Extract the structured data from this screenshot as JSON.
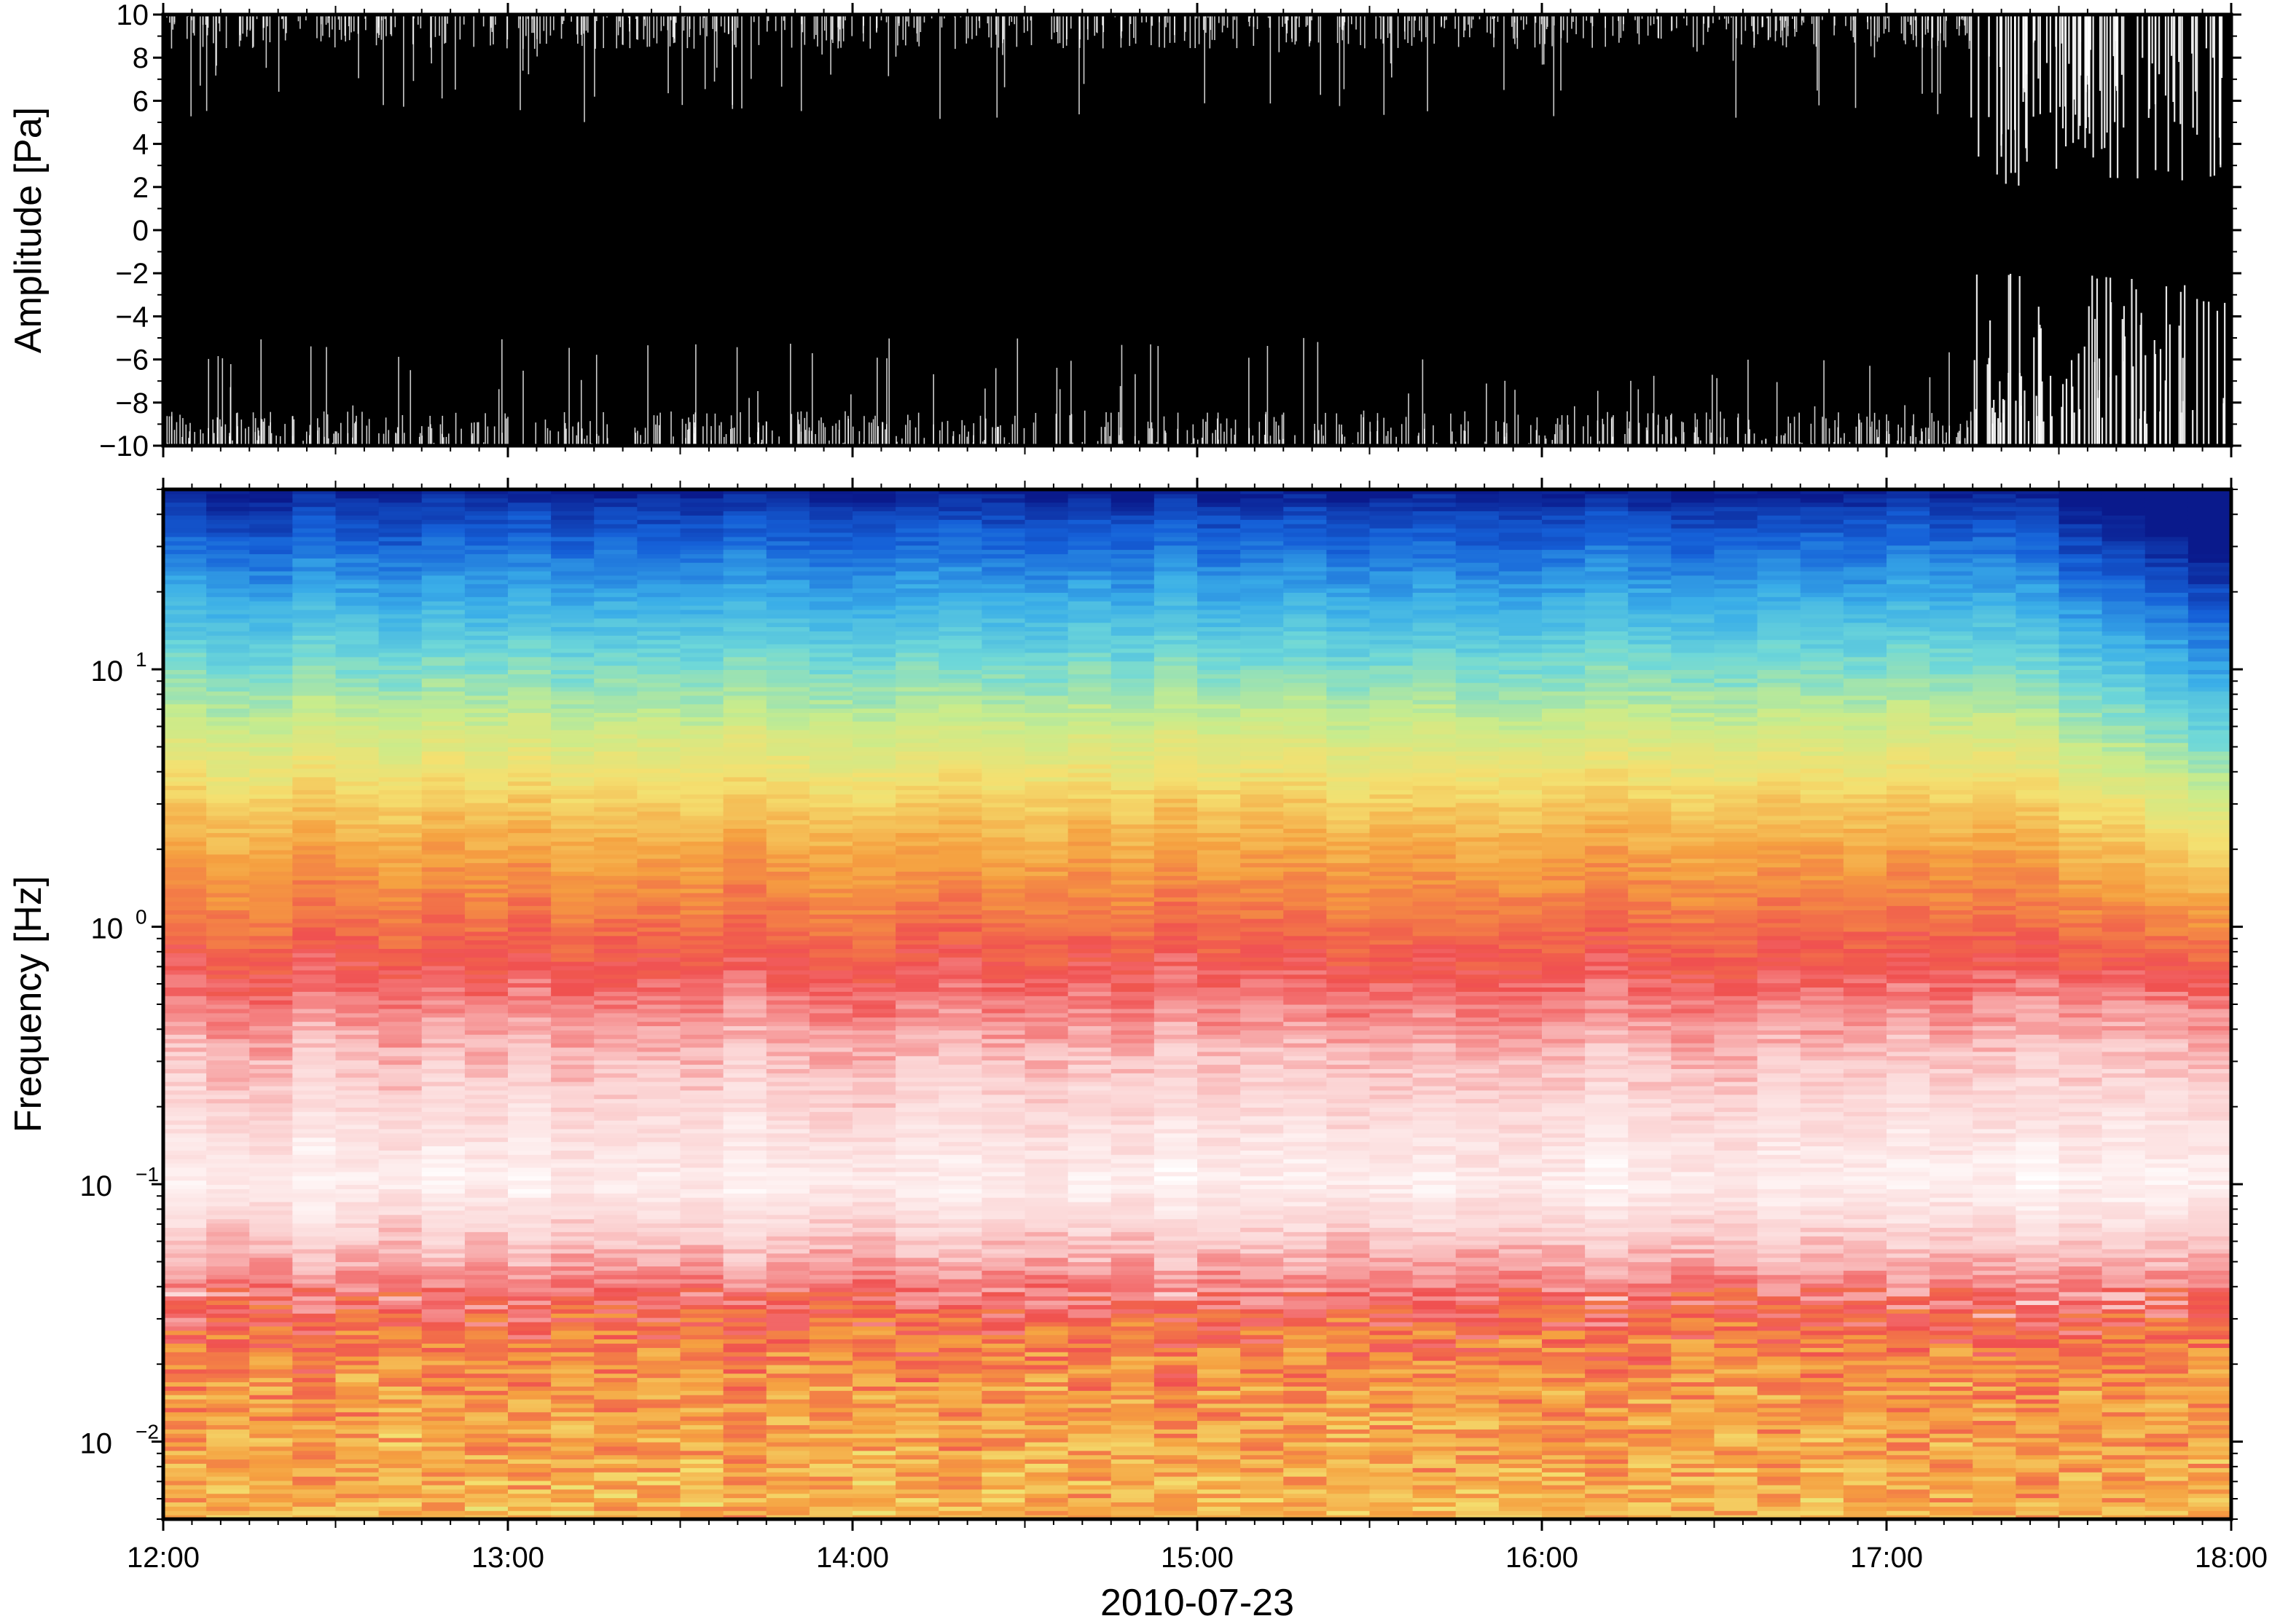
{
  "chart_data": [
    {
      "type": "line",
      "ylabel": "Amplitude [Pa]",
      "ylim": [
        -10,
        10
      ],
      "yticks": [
        -10,
        -8,
        -6,
        -4,
        -2,
        0,
        2,
        4,
        6,
        8,
        10
      ],
      "xlim": [
        "2010-07-23 12:00",
        "2010-07-23 18:00"
      ],
      "grid": false,
      "series": [
        {
          "color": "#000000",
          "description_values": "dense pressure time series saturating the plot; clipped at ±10 Pa",
          "x": [
            "12:00",
            "17:00",
            "17:15",
            "17:30",
            "17:45",
            "18:00"
          ],
          "y": [
            10,
            10,
            10,
            10,
            10,
            10
          ]
        }
      ]
    },
    {
      "type": "heatmap",
      "ylabel": "Frequency [Hz]",
      "xlabel": "2010-07-23",
      "xticks": [
        "12:00",
        "13:00",
        "14:00",
        "15:00",
        "16:00",
        "17:00",
        "18:00"
      ],
      "xlim": [
        "12:00",
        "18:00"
      ],
      "yscale": "log",
      "ylim": [
        0.005,
        50
      ],
      "yticks": [
        {
          "base": "10",
          "exp": "−2",
          "value": 0.01
        },
        {
          "base": "10",
          "exp": "−1",
          "value": 0.1
        },
        {
          "base": "10",
          "exp": "0",
          "value": 1
        },
        {
          "base": "10",
          "exp": "1",
          "value": 10
        }
      ],
      "colormap": [
        "#0a1a8c",
        "#1560d8",
        "#3aaee8",
        "#6fd8d8",
        "#c8ec8c",
        "#f4e070",
        "#f5a040",
        "#f05050",
        "#fbd0d0",
        "#ffffff"
      ],
      "time_bins": 48,
      "band_profile": {
        "freq_hz": [
          0.005,
          0.01,
          0.02,
          0.05,
          0.1,
          0.3,
          1.0,
          2.0,
          3.0,
          5.0,
          10.0,
          20.0,
          40.0,
          50.0
        ],
        "level": [
          0.78,
          0.72,
          0.65,
          0.3,
          0.08,
          0.25,
          0.55,
          0.72,
          0.85,
          1.05,
          1.35,
          1.65,
          1.95,
          2.1
        ]
      },
      "late_shift_start": "17:15"
    }
  ]
}
